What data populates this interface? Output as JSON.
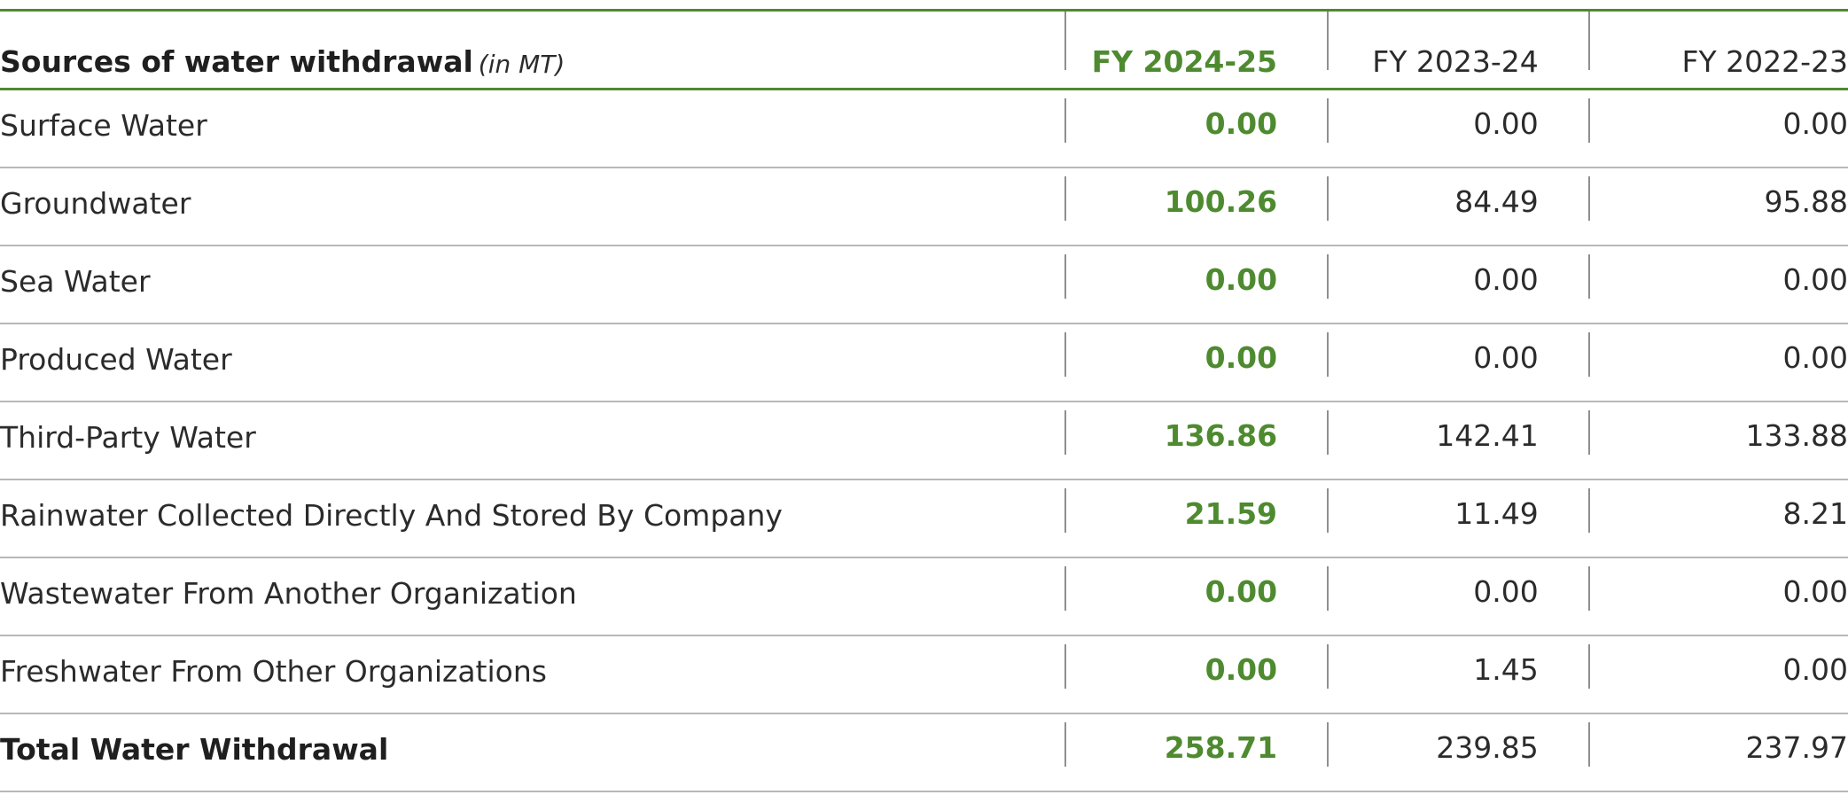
{
  "table": {
    "header": {
      "title": "Sources of water withdrawal",
      "unit": "(in MT)",
      "years": [
        "FY 2024-25",
        "FY 2023-24",
        "FY 2022-23"
      ]
    },
    "rows": [
      {
        "label": "Surface Water",
        "values": [
          "0.00",
          "0.00",
          "0.00"
        ]
      },
      {
        "label": "Groundwater",
        "values": [
          "100.26",
          "84.49",
          "95.88"
        ]
      },
      {
        "label": "Sea Water",
        "values": [
          "0.00",
          "0.00",
          "0.00"
        ]
      },
      {
        "label": "Produced Water",
        "values": [
          "0.00",
          "0.00",
          "0.00"
        ]
      },
      {
        "label": "Third-Party Water",
        "values": [
          "136.86",
          "142.41",
          "133.88"
        ]
      },
      {
        "label": "Rainwater Collected Directly And Stored By Company",
        "values": [
          "21.59",
          "11.49",
          "8.21"
        ]
      },
      {
        "label": "Wastewater From Another Organization",
        "values": [
          "0.00",
          "0.00",
          "0.00"
        ]
      },
      {
        "label": "Freshwater From Other Organizations",
        "values": [
          "0.00",
          "1.45",
          "0.00"
        ]
      },
      {
        "label": "Total Water Withdrawal",
        "values": [
          "258.71",
          "239.85",
          "237.97"
        ]
      }
    ]
  },
  "colors": {
    "accent": "#4e8a2f",
    "rule": "#b8b8b8",
    "text": "#2b2b2b"
  }
}
